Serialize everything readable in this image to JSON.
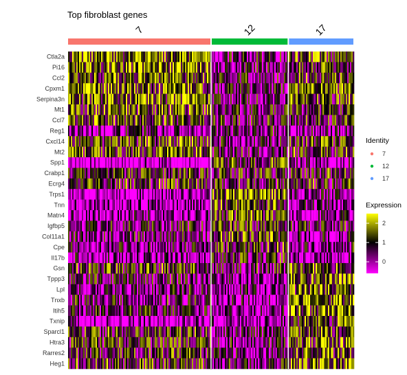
{
  "chart_data": {
    "type": "heatmap",
    "title": "Top fibroblast genes",
    "genes": [
      "Ctla2a",
      "Pi16",
      "Ccl2",
      "Cpxm1",
      "Serpina3n",
      "Mt1",
      "Ccl7",
      "Reg1",
      "Cxcl14",
      "Mt2",
      "Spp1",
      "Crabp1",
      "Ecrg4",
      "Trps1",
      "Tnn",
      "Matn4",
      "Igfbp5",
      "Col11a1",
      "Cpe",
      "Il17b",
      "Gsn",
      "Tppp3",
      "Lpl",
      "Tnxb",
      "Itih5",
      "Txnip",
      "Sparcl1",
      "Htra3",
      "Rarres2",
      "Heg1"
    ],
    "clusters": [
      {
        "name": "7",
        "color": "#F8766D",
        "share": 0.5
      },
      {
        "name": "12",
        "color": "#00BA38",
        "share": 0.27
      },
      {
        "name": "17",
        "color": "#619CFF",
        "share": 0.23
      }
    ],
    "mean_expression": {
      "7": [
        1.6,
        1.6,
        1.4,
        1.5,
        1.5,
        1.3,
        1.2,
        0.2,
        1.2,
        1.3,
        -0.6,
        0.9,
        1.0,
        -0.5,
        -0.3,
        0.0,
        0.6,
        0.4,
        0.3,
        0.0,
        1.1,
        0.5,
        0.4,
        0.5,
        0.7,
        -0.3,
        1.0,
        0.9,
        0.9,
        1.1
      ],
      "12": [
        0.4,
        0.3,
        0.5,
        0.4,
        0.4,
        0.6,
        0.6,
        0.4,
        0.3,
        0.5,
        1.0,
        0.8,
        0.8,
        1.6,
        1.3,
        1.2,
        1.0,
        1.2,
        1.0,
        0.7,
        0.5,
        0.1,
        0.1,
        0.0,
        0.1,
        0.0,
        0.4,
        0.5,
        0.5,
        0.6
      ],
      "17": [
        1.3,
        1.1,
        1.2,
        1.3,
        1.2,
        0.9,
        1.0,
        0.2,
        1.1,
        1.0,
        0.0,
        0.8,
        0.9,
        0.2,
        0.0,
        0.0,
        0.5,
        0.1,
        0.3,
        0.0,
        1.3,
        1.5,
        1.5,
        1.7,
        1.6,
        1.3,
        1.3,
        1.4,
        1.4,
        1.5
      ]
    },
    "identity_legend": {
      "title": "Identity",
      "entries": [
        "7",
        "12",
        "17"
      ]
    },
    "expression_legend": {
      "title": "Expression",
      "ticks": [
        "2",
        "1",
        "0"
      ],
      "tick_values": [
        2,
        1,
        0
      ],
      "range": [
        -0.6,
        2.5
      ]
    },
    "colors": {
      "low": "#FF00FF",
      "mid": "#000000",
      "high": "#FFFF00"
    }
  }
}
